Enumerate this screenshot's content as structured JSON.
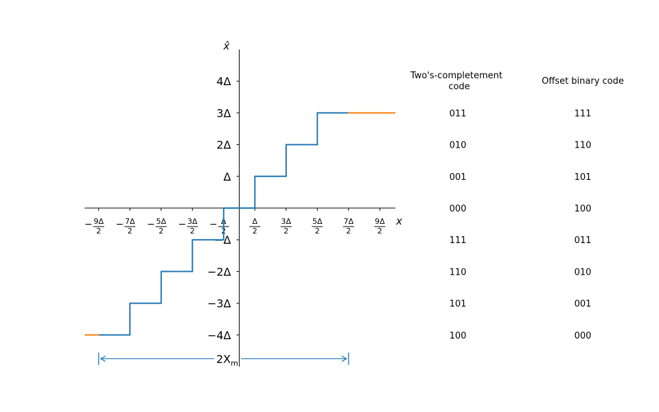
{
  "chart_data": {
    "type": "line",
    "title": "",
    "xlabel": "x",
    "ylabel": "x̂",
    "xlim": [
      -4.95,
      5.0
    ],
    "ylim": [
      -5.0,
      5.0
    ],
    "x_ticks": [
      {
        "value": -4.5,
        "sign": "−",
        "num": "9Δ",
        "den": "2"
      },
      {
        "value": -3.5,
        "sign": "−",
        "num": "7Δ",
        "den": "2"
      },
      {
        "value": -2.5,
        "sign": "−",
        "num": "5Δ",
        "den": "2"
      },
      {
        "value": -1.5,
        "sign": "−",
        "num": "3Δ",
        "den": "2"
      },
      {
        "value": -0.5,
        "sign": "−",
        "num": "Δ",
        "den": "2"
      },
      {
        "value": 0.5,
        "sign": "",
        "num": "Δ",
        "den": "2"
      },
      {
        "value": 1.5,
        "sign": "",
        "num": "3Δ",
        "den": "2"
      },
      {
        "value": 2.5,
        "sign": "",
        "num": "5Δ",
        "den": "2"
      },
      {
        "value": 3.5,
        "sign": "",
        "num": "7Δ",
        "den": "2"
      },
      {
        "value": 4.5,
        "sign": "",
        "num": "9Δ",
        "den": "2"
      }
    ],
    "y_ticks": [
      {
        "value": 4,
        "label": "4Δ"
      },
      {
        "value": 3,
        "label": "3Δ"
      },
      {
        "value": 2,
        "label": "2Δ"
      },
      {
        "value": 1,
        "label": "Δ"
      },
      {
        "value": -1,
        "label": "−Δ"
      },
      {
        "value": -2,
        "label": "−2Δ"
      },
      {
        "value": -3,
        "label": "−3Δ"
      },
      {
        "value": -4,
        "label": "−4Δ"
      }
    ],
    "series": [
      {
        "color": "#1f77b4",
        "x": [
          -4.5,
          -3.5,
          -3.5,
          -2.5,
          -2.5,
          -1.5,
          -1.5,
          -0.5,
          -0.5,
          0.5,
          0.5,
          1.5,
          1.5,
          2.5,
          2.5,
          3.5
        ],
        "y": [
          -4,
          -4,
          -3,
          -3,
          -2,
          -2,
          -1,
          -1,
          0,
          0,
          1,
          1,
          2,
          2,
          3,
          3
        ]
      },
      {
        "color": "#ff7f0e",
        "x": [
          -4.95,
          -4.5
        ],
        "y": [
          -4,
          -4
        ]
      },
      {
        "color": "#ff7f0e",
        "x": [
          3.5,
          5.0
        ],
        "y": [
          3,
          3
        ]
      }
    ],
    "range_annotation": {
      "label_main": "2X",
      "label_sub": "m",
      "x_start": -4.5,
      "x_end": 3.5,
      "y": -4.75,
      "color": "#1f77b4"
    },
    "code_table": {
      "header_twos": [
        "Two's-completement",
        "code"
      ],
      "header_offset": "Offset binary code",
      "rows": [
        {
          "level": 3,
          "twos": "011",
          "offset": "111"
        },
        {
          "level": 2,
          "twos": "010",
          "offset": "110"
        },
        {
          "level": 1,
          "twos": "001",
          "offset": "101"
        },
        {
          "level": 0,
          "twos": "000",
          "offset": "100"
        },
        {
          "level": -1,
          "twos": "111",
          "offset": "011"
        },
        {
          "level": -2,
          "twos": "110",
          "offset": "010"
        },
        {
          "level": -3,
          "twos": "101",
          "offset": "001"
        },
        {
          "level": -4,
          "twos": "100",
          "offset": "000"
        }
      ]
    }
  }
}
